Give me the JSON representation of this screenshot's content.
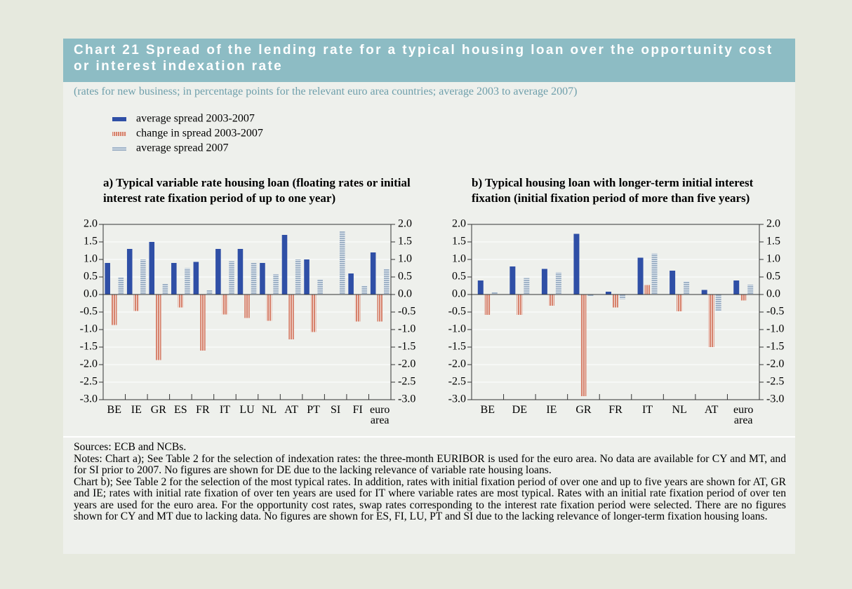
{
  "header": {
    "title": "Chart 21 Spread of the lending rate for a typical housing loan over the opportunity cost or interest indexation rate",
    "subtitle": "(rates for new business; in percentage points for the relevant euro area countries; average 2003 to average 2007)"
  },
  "chart_data": [
    {
      "type": "bar",
      "title": "a) Typical variable rate housing loan (floating rates or initial interest rate fixation period of up to one year)",
      "categories": [
        "BE",
        "IE",
        "GR",
        "ES",
        "FR",
        "IT",
        "LU",
        "NL",
        "AT",
        "PT",
        "SI",
        "FI",
        "euro area"
      ],
      "series": [
        {
          "name": "average spread 2003-2007",
          "color": "#2f4fa6",
          "values": [
            0.9,
            1.3,
            1.5,
            0.9,
            0.93,
            1.3,
            1.3,
            0.9,
            1.7,
            1.0,
            null,
            0.6,
            1.2
          ]
        },
        {
          "name": "change in spread 2003-2007",
          "color": "#d6826c",
          "hatch": "vertical",
          "values": [
            -0.87,
            -0.47,
            -1.87,
            -0.37,
            -1.6,
            -0.57,
            -0.67,
            -0.75,
            -1.28,
            -1.07,
            null,
            -0.77,
            -0.77
          ]
        },
        {
          "name": "average spread 2007",
          "color": "#9fb2c6",
          "hatch": "horizontal",
          "values": [
            0.5,
            1.0,
            0.3,
            0.75,
            0.12,
            0.95,
            0.9,
            0.58,
            1.0,
            0.43,
            1.8,
            0.25,
            0.73
          ]
        }
      ],
      "ylim": [
        -3,
        2
      ],
      "yticks": [
        {
          "value": -3,
          "label": "-3.0"
        },
        {
          "value": -2.5,
          "label": "-2.5"
        },
        {
          "value": -2,
          "label": "-2.0"
        },
        {
          "value": -1.5,
          "label": "-1.5"
        },
        {
          "value": -1,
          "label": "-1.0"
        },
        {
          "value": -0.5,
          "label": "-0.5"
        },
        {
          "value": 0,
          "label": "0.0"
        },
        {
          "value": 0.5,
          "label": "0.5"
        },
        {
          "value": 1,
          "label": "1.0"
        },
        {
          "value": 1.5,
          "label": "1.5"
        },
        {
          "value": 2,
          "label": "2.0"
        }
      ],
      "grid": true
    },
    {
      "type": "bar",
      "title": "b) Typical housing loan with longer-term initial interest fixation (initial fixation period of more than five years)",
      "categories": [
        "BE",
        "DE",
        "IE",
        "GR",
        "FR",
        "IT",
        "NL",
        "AT",
        "euro area"
      ],
      "series": [
        {
          "color": "#2f4fa6",
          "values": [
            0.4,
            0.8,
            0.73,
            1.73,
            0.08,
            1.05,
            0.68,
            0.13,
            0.4
          ]
        },
        {
          "color": "#d6826c",
          "hatch": "vertical",
          "values": [
            -0.58,
            -0.58,
            -0.32,
            -2.9,
            -0.37,
            0.27,
            -0.48,
            -1.5,
            -0.17
          ]
        },
        {
          "color": "#9fb2c6",
          "hatch": "horizontal",
          "values": [
            0.07,
            0.47,
            0.63,
            -0.05,
            -0.13,
            1.17,
            0.38,
            -0.48,
            0.28
          ]
        }
      ],
      "ylim": [
        -3,
        2
      ],
      "yticks": [
        {
          "value": -3,
          "label": "-3.0"
        },
        {
          "value": -2.5,
          "label": "-2.5"
        },
        {
          "value": -2,
          "label": "-2.0"
        },
        {
          "value": -1.5,
          "label": "-1.5"
        },
        {
          "value": -1,
          "label": "-1.0"
        },
        {
          "value": -0.5,
          "label": "-0.5"
        },
        {
          "value": 0,
          "label": "0.0"
        },
        {
          "value": 0.5,
          "label": "0.5"
        },
        {
          "value": 1,
          "label": "1.0"
        },
        {
          "value": 1.5,
          "label": "1.5"
        },
        {
          "value": 2,
          "label": "2.0"
        }
      ],
      "grid": true
    }
  ],
  "footer": {
    "sources": "Sources: ECB and NCBs.",
    "notes": [
      "Notes: Chart a); See Table 2 for the selection of indexation rates: the three-month EURIBOR is used for the euro area. No data are available for CY and MT, and for SI prior to 2007. No figures are shown for DE due to the lacking relevance of variable rate housing loans.",
      "Chart b); See Table 2 for the selection of the most typical rates. In addition, rates with initial fixation period of over one and up to five years are shown for AT, GR and IE; rates with initial rate fixation of over ten years are used for IT where variable rates are most typical. Rates with an initial rate fixation period of over ten years are used for the euro area. For the opportunity cost rates, swap rates corresponding to the interest rate fixation period were selected. There are no figures shown for CY and MT due to lacking data. No figures are shown for ES, FI, LU, PT and SI due to the lacking relevance of longer-term fixation housing loans."
    ]
  }
}
